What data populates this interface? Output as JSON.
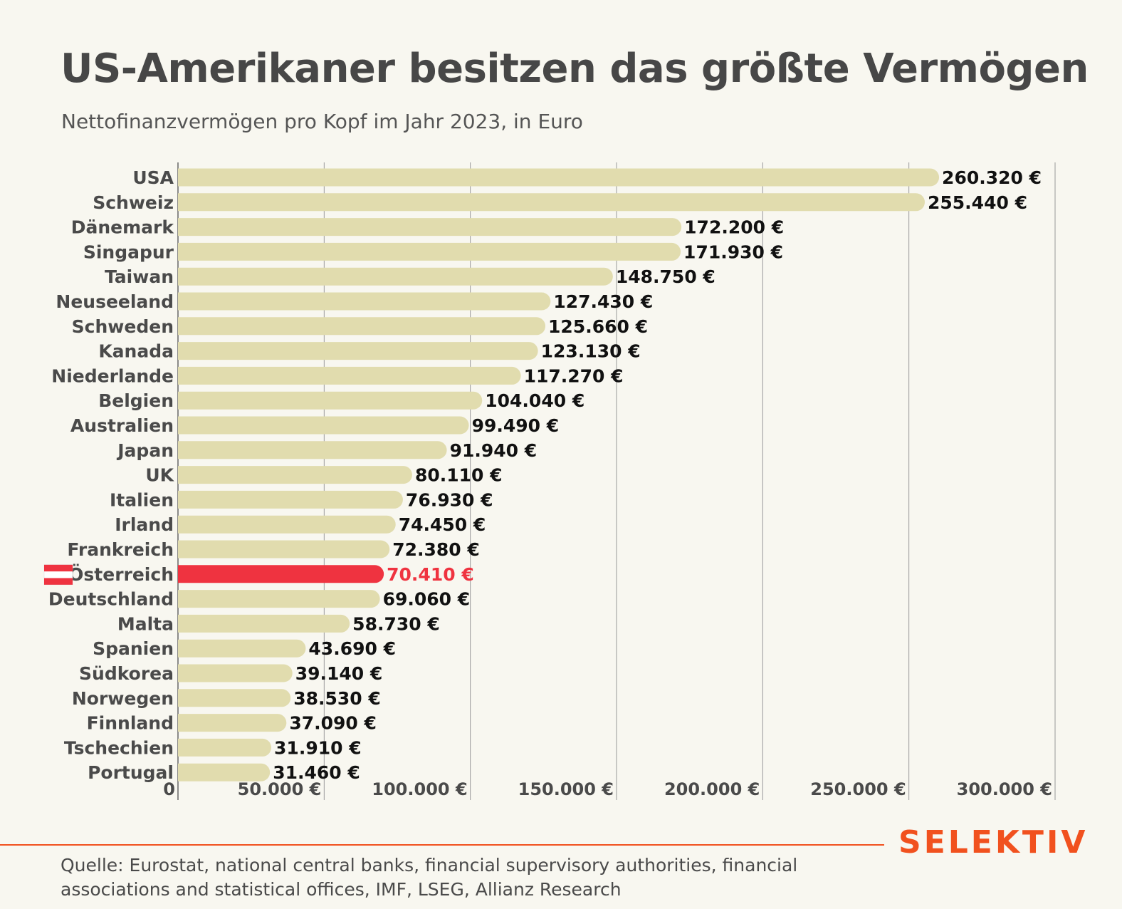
{
  "header": {
    "title": "US-Amerikaner besitzen das größte Vermögen",
    "subtitle": "Nettofinanzvermögen pro Kopf im Jahr 2023, in Euro"
  },
  "footer": {
    "brand": "SELEKTIV",
    "source": "Quelle: Eurostat, national central banks, financial supervisory authorities, financial associations and statistical offices, IMF, LSEG, Allianz Research"
  },
  "colors": {
    "bar": "#e1dcae",
    "highlight": "#ef3340",
    "brand": "#f1511e",
    "grid": "#999999",
    "background": "#f8f7f0"
  },
  "chart_data": {
    "type": "bar",
    "orientation": "horizontal",
    "categories": [
      "USA",
      "Schweiz",
      "Dänemark",
      "Singapur",
      "Taiwan",
      "Neuseeland",
      "Schweden",
      "Kanada",
      "Niederlande",
      "Belgien",
      "Australien",
      "Japan",
      "UK",
      "Italien",
      "Irland",
      "Frankreich",
      "Österreich",
      "Deutschland",
      "Malta",
      "Spanien",
      "Südkorea",
      "Norwegen",
      "Finnland",
      "Tschechien",
      "Portugal"
    ],
    "values": [
      260320,
      255440,
      172200,
      171930,
      148750,
      127430,
      125660,
      123130,
      117270,
      104040,
      99490,
      91940,
      80110,
      76930,
      74450,
      72380,
      70410,
      69060,
      58730,
      43690,
      39140,
      38530,
      37090,
      31910,
      31460
    ],
    "value_labels": [
      "260.320 €",
      "255.440 €",
      "172.200 €",
      "171.930 €",
      "148.750 €",
      "127.430 €",
      "125.660 €",
      "123.130 €",
      "117.270 €",
      "104.040 €",
      "99.490 €",
      "91.940 €",
      "80.110 €",
      "76.930 €",
      "74.450 €",
      "72.380 €",
      "70.410 €",
      "69.060 €",
      "58.730 €",
      "43.690 €",
      "39.140 €",
      "38.530 €",
      "37.090 €",
      "31.910 €",
      "31.460 €"
    ],
    "highlight": "Österreich",
    "highlight_icon": "austria-flag-icon",
    "xlim": [
      0,
      300000
    ],
    "xticks": [
      0,
      50000,
      100000,
      150000,
      200000,
      250000,
      300000
    ],
    "xtick_labels": [
      "0",
      "50.000 €",
      "100.000 €",
      "150.000 €",
      "200.000 €",
      "250.000 €",
      "300.000 €"
    ],
    "grid": true,
    "legend": "none"
  }
}
